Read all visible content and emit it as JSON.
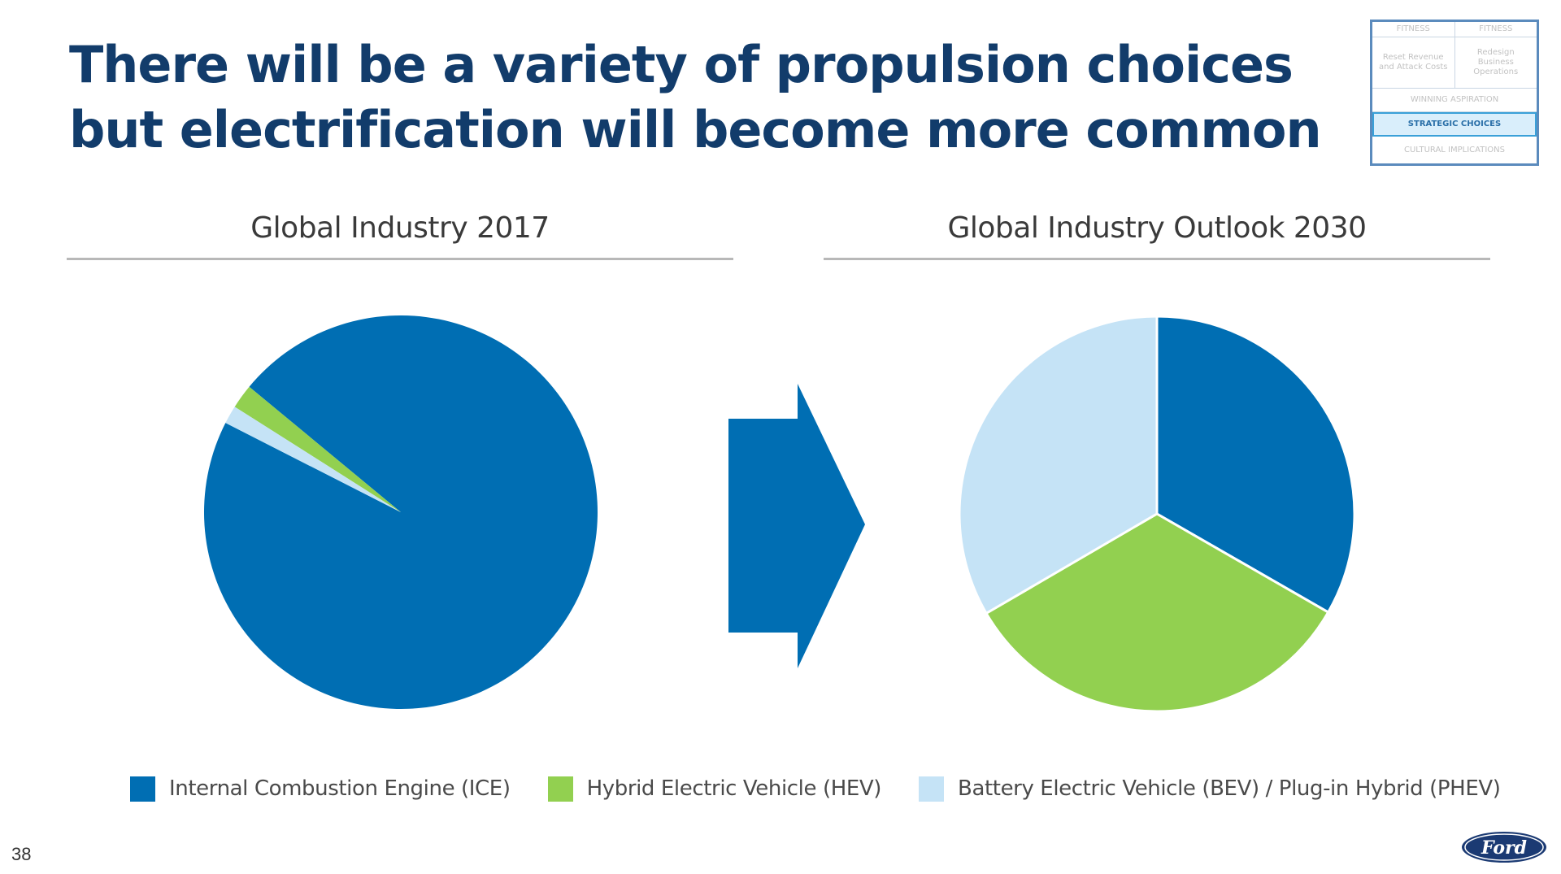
{
  "title": {
    "line1": "There will be a variety of propulsion choices",
    "line2": "but electrification will become more common"
  },
  "page_number": "38",
  "nav_box": {
    "row1": [
      "FITNESS",
      "FITNESS"
    ],
    "row2": [
      "Reset Revenue and Attack Costs",
      "Redesign Business Operations"
    ],
    "row3": "WINNING ASPIRATION",
    "row4": "STRATEGIC CHOICES",
    "row5": "CULTURAL IMPLICATIONS",
    "active": "STRATEGIC CHOICES"
  },
  "logo_text": "Ford",
  "colors": {
    "ice": "#006eb3",
    "hev": "#92d050",
    "bev_phev": "#c5e3f6",
    "arrow": "#006eb3"
  },
  "chart_data": [
    {
      "type": "pie",
      "title": "Global Industry 2017",
      "categories": [
        "Internal Combustion Engine (ICE)",
        "Hybrid Electric Vehicle (HEV)",
        "Battery Electric Vehicle (BEV) / Plug-in Hybrid (PHEV)"
      ],
      "values": [
        96.5,
        2,
        1.5
      ],
      "unit": "%",
      "legend": "bottom"
    },
    {
      "type": "pie",
      "title": "Global Industry Outlook 2030",
      "categories": [
        "Internal Combustion Engine (ICE)",
        "Hybrid Electric Vehicle (HEV)",
        "Battery Electric Vehicle (BEV) / Plug-in Hybrid (PHEV)"
      ],
      "values": [
        33.3,
        33.3,
        33.4
      ],
      "unit": "%",
      "legend": "bottom"
    }
  ],
  "legend": [
    {
      "label": "Internal Combustion Engine (ICE)",
      "color": "#006eb3"
    },
    {
      "label": "Hybrid Electric Vehicle (HEV)",
      "color": "#92d050"
    },
    {
      "label": "Battery Electric Vehicle (BEV) / Plug-in Hybrid (PHEV)",
      "color": "#c5e3f6"
    }
  ]
}
